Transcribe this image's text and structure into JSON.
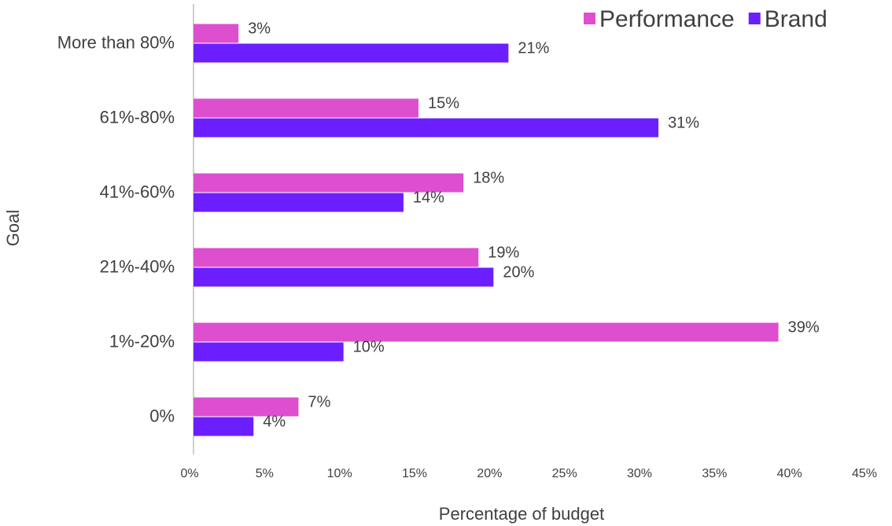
{
  "chart_data": {
    "type": "bar",
    "orientation": "horizontal",
    "x_label": "Percentage of budget",
    "y_label": "Goal",
    "categories": [
      "More than 80%",
      "61%-80%",
      "41%-60%",
      "21%-40%",
      "1%-20%",
      "0%"
    ],
    "series": [
      {
        "name": "Performance",
        "color": "#dd4fcf",
        "values": [
          3,
          15,
          18,
          19,
          39,
          7
        ],
        "value_labels": [
          "3%",
          "15%",
          "18%",
          "19%",
          "39%",
          "7%"
        ]
      },
      {
        "name": "Brand",
        "color": "#6b1fff",
        "values": [
          21,
          31,
          14,
          20,
          10,
          4
        ],
        "value_labels": [
          "21%",
          "31%",
          "14%",
          "20%",
          "10%",
          "4%"
        ]
      }
    ],
    "xlim": [
      0,
      45
    ],
    "xticks": [
      {
        "value": 0,
        "label": "0%"
      },
      {
        "value": 5,
        "label": "5%"
      },
      {
        "value": 10,
        "label": "10%"
      },
      {
        "value": 15,
        "label": "15%"
      },
      {
        "value": 20,
        "label": "20%"
      },
      {
        "value": 25,
        "label": "25%"
      },
      {
        "value": 30,
        "label": "30%"
      },
      {
        "value": 35,
        "label": "35%"
      },
      {
        "value": 40,
        "label": "40%"
      },
      {
        "value": 45,
        "label": "45%"
      }
    ],
    "legend": "top-right"
  }
}
